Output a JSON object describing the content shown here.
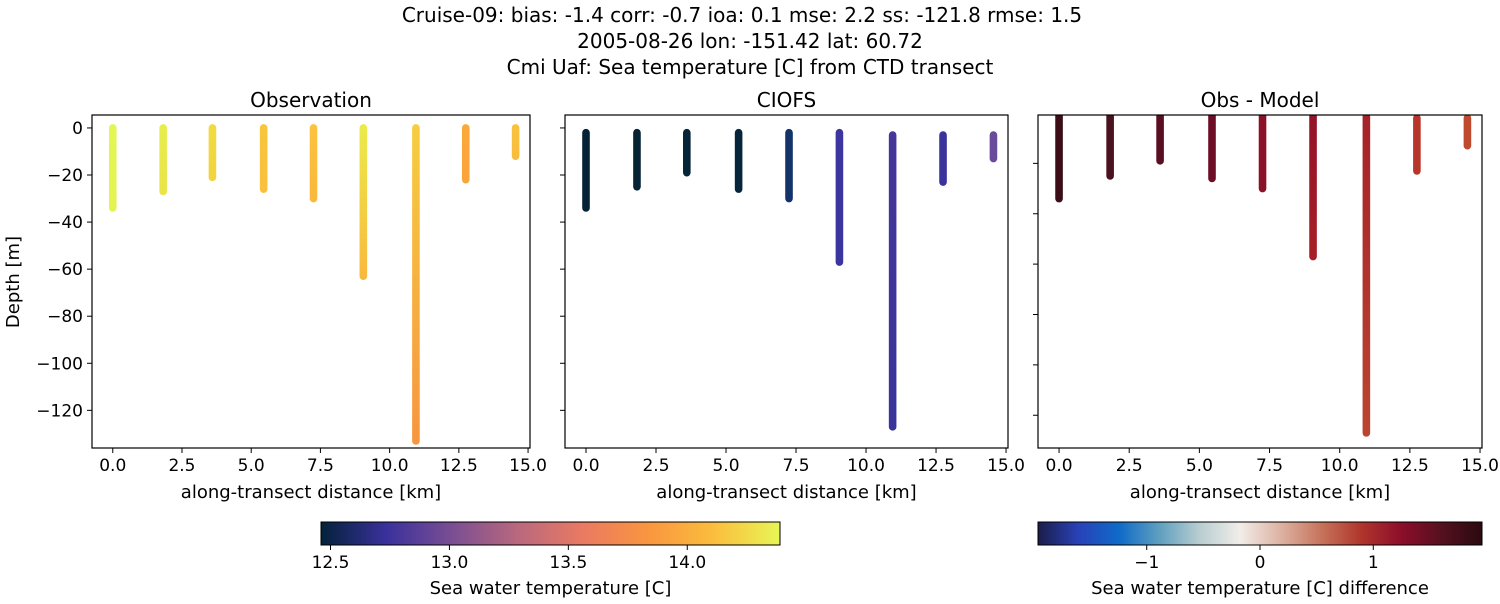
{
  "figure": {
    "title_lines": [
      "Cruise-09: bias: -1.4  corr: -0.7  ioa: 0.1  mse: 2.2  ss: -121.8  rmse: 1.5",
      "2005-08-26 lon: -151.42 lat: 60.72",
      "Cmi Uaf: Sea temperature [C] from CTD transect"
    ]
  },
  "chart_data": [
    {
      "type": "scatter",
      "title": "Observation",
      "xlabel": "along-transect distance [km]",
      "ylabel": "Depth [m]",
      "xlim": [
        -0.75,
        15.07
      ],
      "ylim": [
        -136,
        5.5
      ],
      "xticks": [
        "0.0",
        "2.5",
        "5.0",
        "7.5",
        "10.0",
        "12.5",
        "15.0"
      ],
      "yticks": [
        "0",
        "−20",
        "−40",
        "−60",
        "−80",
        "−100",
        "−120"
      ],
      "ytick_values": [
        0,
        -20,
        -40,
        -60,
        -80,
        -100,
        -120
      ],
      "profiles": [
        {
          "x": 0.0,
          "top": 0,
          "bottom": -34,
          "color_top": "#e2f654",
          "color_bottom": "#e4f352"
        },
        {
          "x": 1.82,
          "top": 0,
          "bottom": -27,
          "color_top": "#e6ee4c",
          "color_bottom": "#ebe349"
        },
        {
          "x": 3.6,
          "top": 0,
          "bottom": -21,
          "color_top": "#f1db40",
          "color_bottom": "#f3d33e"
        },
        {
          "x": 5.45,
          "top": 0,
          "bottom": -26,
          "color_top": "#f8c63e",
          "color_bottom": "#f9bf3d"
        },
        {
          "x": 7.25,
          "top": 0,
          "bottom": -30,
          "color_top": "#fbc33e",
          "color_bottom": "#fab83c"
        },
        {
          "x": 9.05,
          "top": 0,
          "bottom": -63,
          "color_top": "#ebeb4a",
          "color_bottom": "#f9b83d"
        },
        {
          "x": 10.95,
          "top": 0,
          "bottom": -133,
          "color_top": "#f6ce40",
          "color_bottom": "#f79540"
        },
        {
          "x": 12.75,
          "top": 0,
          "bottom": -22,
          "color_top": "#faa83c",
          "color_bottom": "#faa43c"
        },
        {
          "x": 14.55,
          "top": 0,
          "bottom": -12,
          "color_top": "#f9c23d",
          "color_bottom": "#f9bc3d"
        }
      ]
    },
    {
      "type": "scatter",
      "title": "CIOFS",
      "xlabel": "along-transect distance [km]",
      "xlim": [
        -0.75,
        15.07
      ],
      "ylim": [
        -136,
        5.5
      ],
      "xticks": [
        "0.0",
        "2.5",
        "5.0",
        "7.5",
        "10.0",
        "12.5",
        "15.0"
      ],
      "ytick_values": [
        0,
        -20,
        -40,
        -60,
        -80,
        -100,
        -120
      ],
      "profiles": [
        {
          "x": 0.0,
          "top": -2,
          "bottom": -34,
          "color_top": "#062235",
          "color_bottom": "#062235"
        },
        {
          "x": 1.82,
          "top": -2,
          "bottom": -25,
          "color_top": "#062235",
          "color_bottom": "#062235"
        },
        {
          "x": 3.6,
          "top": -2,
          "bottom": -19,
          "color_top": "#062438",
          "color_bottom": "#062438"
        },
        {
          "x": 5.45,
          "top": -2,
          "bottom": -26,
          "color_top": "#06243a",
          "color_bottom": "#06243a"
        },
        {
          "x": 7.25,
          "top": -2,
          "bottom": -30,
          "color_top": "#13336a",
          "color_bottom": "#13336a"
        },
        {
          "x": 9.05,
          "top": -2,
          "bottom": -57,
          "color_top": "#3d35a0",
          "color_bottom": "#3b35a0"
        },
        {
          "x": 10.95,
          "top": -3,
          "bottom": -127,
          "color_top": "#453699",
          "color_bottom": "#38349a"
        },
        {
          "x": 12.75,
          "top": -3,
          "bottom": -23,
          "color_top": "#3a339c",
          "color_bottom": "#3a339c"
        },
        {
          "x": 14.55,
          "top": -3,
          "bottom": -13,
          "color_top": "#6a4a9a",
          "color_bottom": "#6a4a9a"
        }
      ]
    },
    {
      "type": "scatter",
      "title": "Obs - Model",
      "xlabel": "along-transect distance [km]",
      "xlim": [
        -0.75,
        15.07
      ],
      "ylim": [
        -133,
        -0.8
      ],
      "xticks": [
        "0.0",
        "2.5",
        "5.0",
        "7.5",
        "10.0",
        "12.5",
        "15.0"
      ],
      "ytick_values": [
        -20,
        -40,
        -60,
        -80,
        -100,
        -120
      ],
      "profiles": [
        {
          "x": 0.0,
          "top": 0,
          "bottom": -34,
          "color_top": "#3a0d17",
          "color_bottom": "#3a0d17"
        },
        {
          "x": 1.82,
          "top": 0,
          "bottom": -25,
          "color_top": "#4a111e",
          "color_bottom": "#4a111e"
        },
        {
          "x": 3.6,
          "top": 0,
          "bottom": -19,
          "color_top": "#5a0e21",
          "color_bottom": "#5a0e21"
        },
        {
          "x": 5.45,
          "top": 0,
          "bottom": -26,
          "color_top": "#6d0e26",
          "color_bottom": "#6d0e26"
        },
        {
          "x": 7.25,
          "top": 0,
          "bottom": -30,
          "color_top": "#8b1128",
          "color_bottom": "#8b1128"
        },
        {
          "x": 9.05,
          "top": 0,
          "bottom": -57,
          "color_top": "#921229",
          "color_bottom": "#a81f25"
        },
        {
          "x": 10.95,
          "top": -1.5,
          "bottom": -127,
          "color_top": "#a52228",
          "color_bottom": "#bb4530"
        },
        {
          "x": 12.75,
          "top": -2,
          "bottom": -23,
          "color_top": "#b8352a",
          "color_bottom": "#b8352a"
        },
        {
          "x": 14.55,
          "top": -2,
          "bottom": -13,
          "color_top": "#c04a30",
          "color_bottom": "#c04a30"
        }
      ]
    }
  ],
  "colorbars": [
    {
      "label": "Sea water temperature [C]",
      "range": [
        12.46,
        14.39
      ],
      "ticks": [
        {
          "value": 12.5,
          "label": "12.5"
        },
        {
          "value": 13.0,
          "label": "13.0"
        },
        {
          "value": 13.5,
          "label": "13.5"
        },
        {
          "value": 14.0,
          "label": "14.0"
        }
      ],
      "colors": [
        "#03223a",
        "#3a319c",
        "#7a4e93",
        "#b9687d",
        "#ea7a62",
        "#f9963f",
        "#fbbe3e",
        "#e8f655"
      ]
    },
    {
      "label": "Sea water temperature [C] difference",
      "range": [
        -1.96,
        1.96
      ],
      "ticks": [
        {
          "value": -1,
          "label": "−1"
        },
        {
          "value": 0,
          "label": "0"
        },
        {
          "value": 1,
          "label": "1"
        }
      ],
      "colors": [
        "#1c1d4a",
        "#2842b8",
        "#0f6ac8",
        "#5e9fbf",
        "#b8cdd0",
        "#f1ede9",
        "#ddb3a3",
        "#c7745d",
        "#b0362c",
        "#8c0e2a",
        "#55101f",
        "#2a0a10"
      ]
    }
  ]
}
